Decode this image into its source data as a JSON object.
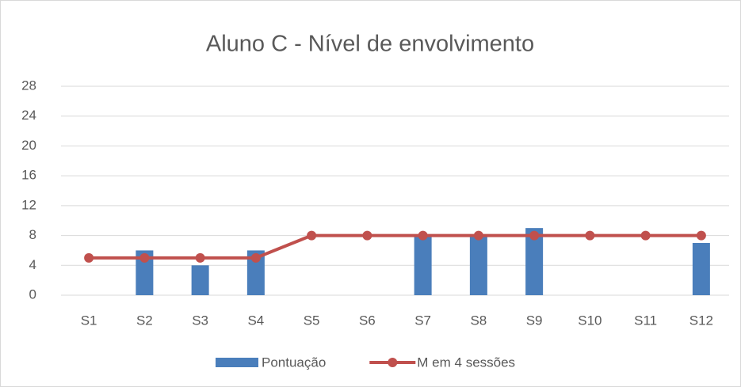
{
  "chart_data": {
    "type": "combo",
    "title": "Aluno C - Nível de envolvimento",
    "categories": [
      "S1",
      "S2",
      "S3",
      "S4",
      "S5",
      "S6",
      "S7",
      "S8",
      "S9",
      "S10",
      "S11",
      "S12"
    ],
    "series": [
      {
        "name": "Pontuação",
        "type": "bar",
        "color": "#4a7ebb",
        "values": [
          null,
          6,
          4,
          6,
          null,
          null,
          8,
          8,
          9,
          null,
          null,
          7
        ]
      },
      {
        "name": "M em 4 sessões",
        "type": "line",
        "color": "#c0504d",
        "values": [
          5,
          5,
          5,
          5,
          8,
          8,
          8,
          8,
          8,
          8,
          8,
          8
        ]
      }
    ],
    "ylim": [
      0,
      28
    ],
    "yticks": [
      0,
      4,
      8,
      12,
      16,
      20,
      24,
      28
    ],
    "grid": true,
    "legend": "bottom"
  }
}
